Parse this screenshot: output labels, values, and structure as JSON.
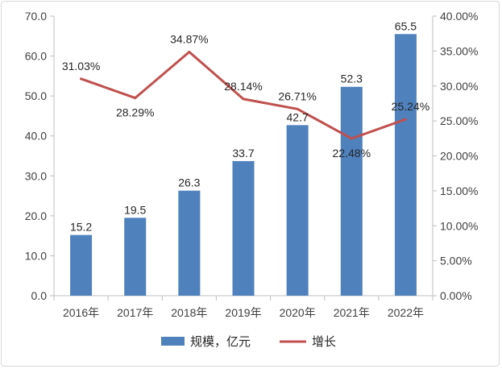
{
  "chart_data": {
    "type": "bar+line",
    "categories": [
      "2016年",
      "2017年",
      "2018年",
      "2019年",
      "2020年",
      "2021年",
      "2022年"
    ],
    "series": [
      {
        "name": "规模，亿元",
        "type": "bar",
        "axis": "left",
        "color": "#4f81bd",
        "values": [
          15.2,
          19.5,
          26.3,
          33.7,
          42.7,
          52.3,
          65.5
        ],
        "labels": [
          "15.2",
          "19.5",
          "26.3",
          "33.7",
          "42.7",
          "52.3",
          "65.5"
        ]
      },
      {
        "name": "增长",
        "type": "line",
        "axis": "right",
        "color": "#c0504d",
        "values": [
          31.03,
          28.29,
          34.87,
          28.14,
          26.71,
          22.48,
          25.24
        ],
        "labels": [
          "31.03%",
          "28.29%",
          "34.87%",
          "28.14%",
          "26.71%",
          "22.48%",
          "25.24%"
        ]
      }
    ],
    "y_left": {
      "range": [
        0,
        70
      ],
      "ticks": [
        "0.0",
        "10.0",
        "20.0",
        "30.0",
        "40.0",
        "50.0",
        "60.0",
        "70.0"
      ]
    },
    "y_right": {
      "range": [
        0,
        40
      ],
      "ticks": [
        "0.00%",
        "5.00%",
        "10.00%",
        "15.00%",
        "20.00%",
        "25.00%",
        "30.00%",
        "35.00%",
        "40.00%"
      ]
    },
    "legend": {
      "position": "bottom",
      "items": [
        "规模，亿元",
        "增长"
      ]
    },
    "grid": false,
    "title": ""
  }
}
